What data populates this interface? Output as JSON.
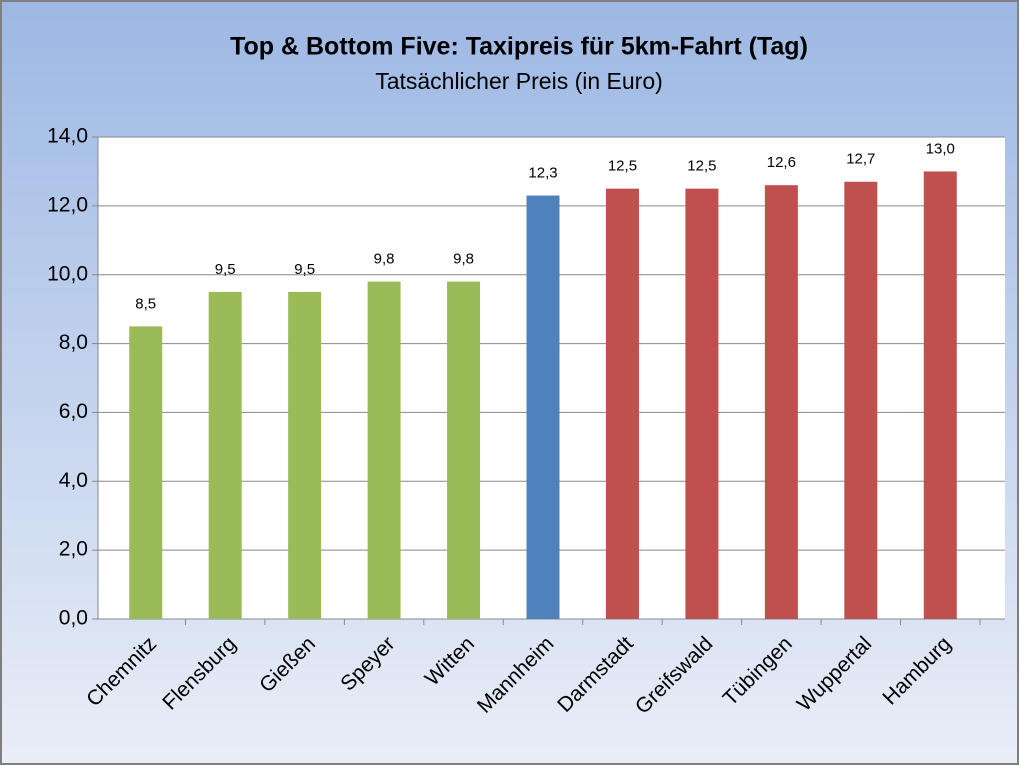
{
  "chart_data": {
    "type": "bar",
    "title": "Top & Bottom Five: Taxipreis für 5km-Fahrt (Tag)",
    "subtitle": "Tatsächlicher Preis (in Euro)",
    "categories": [
      "Chemnitz",
      "Flensburg",
      "Gießen",
      "Speyer",
      "Witten",
      "Mannheim",
      "Darmstadt",
      "Greifswald",
      "Tübingen",
      "Wuppertal",
      "Hamburg"
    ],
    "values": [
      8.5,
      9.5,
      9.5,
      9.8,
      9.8,
      12.3,
      12.5,
      12.5,
      12.6,
      12.7,
      13.0
    ],
    "value_labels": [
      "8,5",
      "9,5",
      "9,5",
      "9,8",
      "9,8",
      "12,3",
      "12,5",
      "12,5",
      "12,6",
      "12,7",
      "13,0"
    ],
    "colors": [
      "#9bbb59",
      "#9bbb59",
      "#9bbb59",
      "#9bbb59",
      "#9bbb59",
      "#4f81bd",
      "#c0504d",
      "#c0504d",
      "#c0504d",
      "#c0504d",
      "#c0504d"
    ],
    "ylim": [
      0,
      14
    ],
    "yticks": [
      {
        "value": 0,
        "label": "0,0"
      },
      {
        "value": 2,
        "label": "2,0"
      },
      {
        "value": 4,
        "label": "4,0"
      },
      {
        "value": 6,
        "label": "6,0"
      },
      {
        "value": 8,
        "label": "8,0"
      },
      {
        "value": 10,
        "label": "10,0"
      },
      {
        "value": 12,
        "label": "12,0"
      },
      {
        "value": 14,
        "label": "14,0"
      }
    ],
    "grid": true
  }
}
